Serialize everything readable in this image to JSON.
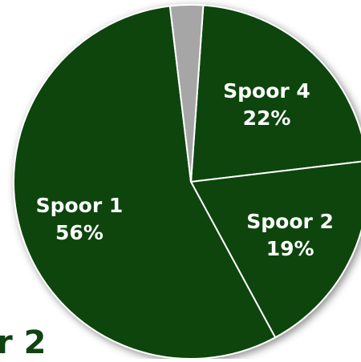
{
  "chart_data": {
    "type": "pie",
    "slices": [
      {
        "label": "Spoor 4",
        "percent_label": "22%",
        "value": 22,
        "color": "#0f4411"
      },
      {
        "label": "Spoor 2",
        "percent_label": "19%",
        "value": 19,
        "color": "#0f4411"
      },
      {
        "label": "Spoor 1",
        "percent_label": "56%",
        "value": 56,
        "color": "#0f4411"
      },
      {
        "label": "",
        "percent_label": "",
        "value": 3,
        "color": "#a6a6a6"
      }
    ],
    "start_angle_deg": 4.0,
    "border_color": "#ffffff",
    "legend": "none"
  },
  "caption": {
    "text": "r 2",
    "color": "#0f4411"
  }
}
